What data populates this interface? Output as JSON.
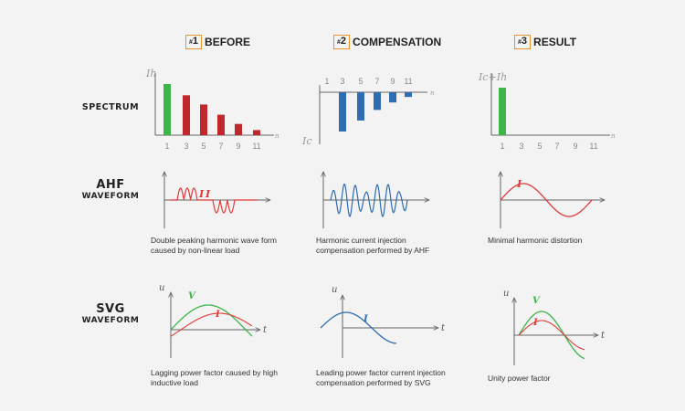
{
  "headers": [
    {
      "hash": "#",
      "num": "1",
      "label": "BEFORE"
    },
    {
      "hash": "#",
      "num": "2",
      "label": "COMPENSATION"
    },
    {
      "hash": "#",
      "num": "3",
      "label": "RESULT"
    }
  ],
  "row_labels": {
    "spectrum": "SPECTRUM",
    "ahf_big": "AHF",
    "ahf_small": "WAVEFORM",
    "svg_big": "SVG",
    "svg_small": "WAVEFORM"
  },
  "spectrum": {
    "ticks": [
      "1",
      "3",
      "5",
      "7",
      "9",
      "11"
    ],
    "axis_end": "n",
    "before": {
      "ylabel": "Ih",
      "values": [
        1.0,
        0.78,
        0.6,
        0.4,
        0.22,
        0.1
      ],
      "colors": [
        "#3db54a",
        "#c0282d",
        "#c0282d",
        "#c0282d",
        "#c0282d",
        "#c0282d"
      ]
    },
    "compensation": {
      "ylabel": "Ic",
      "values": [
        0,
        -1.0,
        -0.72,
        -0.45,
        -0.26,
        -0.12
      ],
      "color": "#2e6db0"
    },
    "result": {
      "ylabel": "Ic+Ih",
      "values": [
        1.0,
        0,
        0,
        0,
        0,
        0
      ],
      "color": "#3db54a"
    }
  },
  "ahf": {
    "before": {
      "label": "I",
      "caption": "Double peaking harmonic wave form caused by non-linear load"
    },
    "compensation": {
      "caption": "Harmonic current injection compensation performed by AHF"
    },
    "result": {
      "label": "I",
      "caption": "Minimal harmonic distortion"
    }
  },
  "svg_wave": {
    "axis_u": "u",
    "axis_t": "t",
    "before": {
      "v_label": "V",
      "i_label": "I",
      "caption": "Lagging power factor caused by high inductive load"
    },
    "compensation": {
      "i_label": "I",
      "caption": "Leading power factor current injection compensation performed by SVG"
    },
    "result": {
      "v_label": "V",
      "i_label": "I",
      "caption": "Unity power factor"
    }
  },
  "colors": {
    "accent": "#e8942a",
    "green": "#3db54a",
    "red": "#e03a3a",
    "blue": "#2e6db0",
    "axis": "#666666",
    "tick_text": "#888888"
  }
}
